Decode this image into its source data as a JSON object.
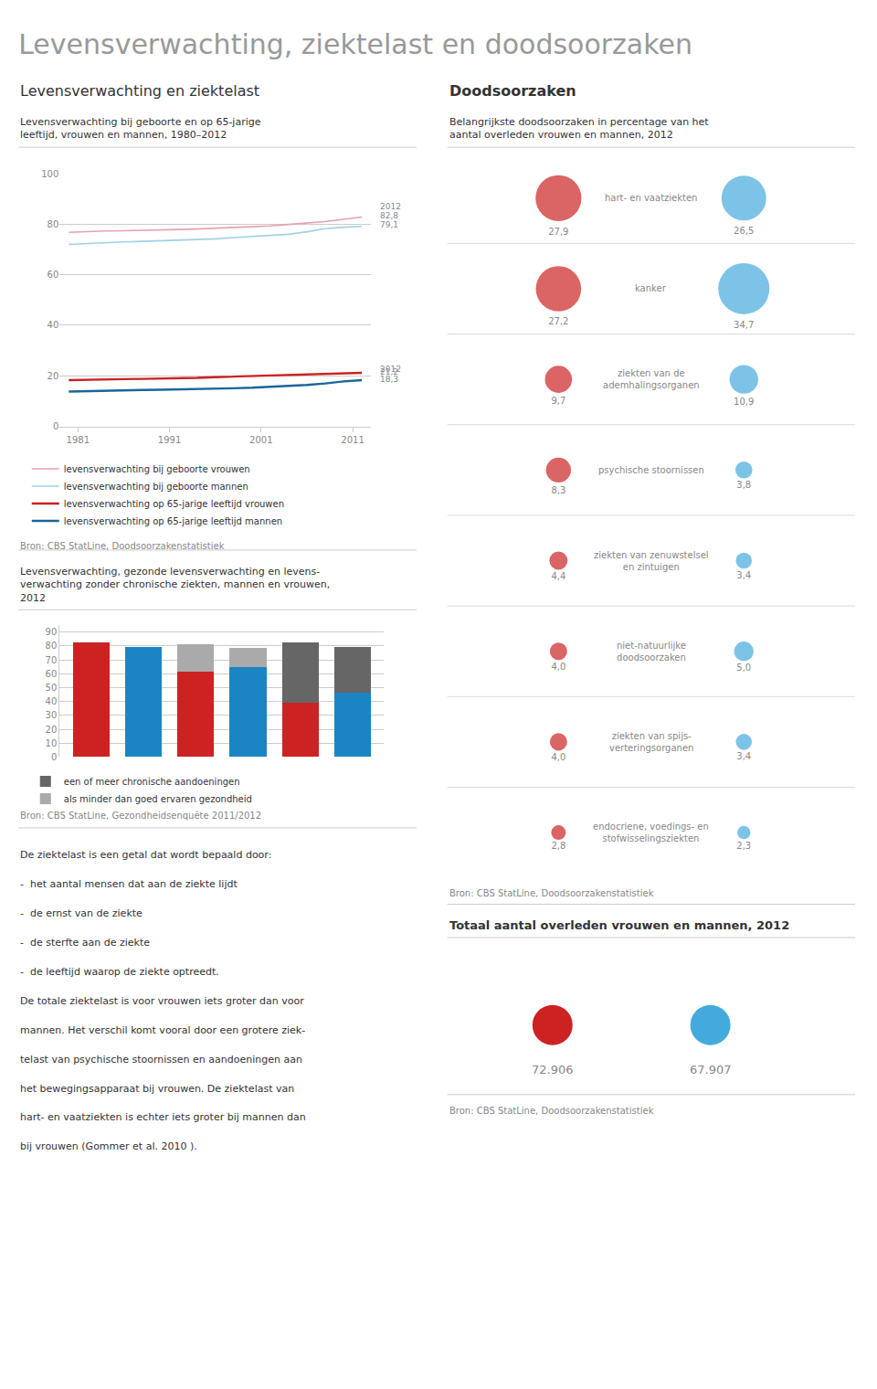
{
  "title": "Levensverwachting, ziektelast en doodsoorzaken",
  "annotations": [
    {
      "text": "Levensverwachting en ziektelast"
    },
    {
      "text": "Doodsoorzaken"
    },
    {
      "text": "De ziektelast is een getal dat wordt bepaald door:"
    },
    {
      "text": "-  het aantal mensen dat aan de ziekte lijdt"
    },
    {
      "text": "-  de ernst van de ziekte"
    },
    {
      "text": "-  de sterfte aan de ziekte"
    },
    {
      "text": "-  de leeftijd waarop de ziekte optreedt."
    },
    {
      "text": "De totale ziektelast is voor vrouwen iets groter dan voor"
    },
    {
      "text": "mannen. Het verschil komt vooral door een grotere ziek-"
    },
    {
      "text": "telast van psychische stoornissen en aandoeningen aan"
    },
    {
      "text": "het bewegingsapparaat bij vrouwen. De ziektelast van"
    },
    {
      "text": "hart- en vaatziekten is echter iets groter bij mannen dan"
    },
    {
      "text": "bij vrouwen (Gommer et al. 2010 )."
    }
  ],
  "chart_data": [
    {
      "type": "line",
      "title": "Levensverwachting bij geboorte en op 65-jarige\nleeftijd, vrouwen en mannen, 1980–2012",
      "x": [
        1980,
        1982,
        1984,
        1986,
        1988,
        1990,
        1992,
        1994,
        1996,
        1998,
        2000,
        2002,
        2004,
        2006,
        2008,
        2010,
        2012
      ],
      "series": [
        {
          "name": "levensverwachting bij geboorte vrouwen",
          "color": "#e8a0b0",
          "values": [
            76.8,
            77.1,
            77.3,
            77.4,
            77.5,
            77.6,
            77.9,
            78.1,
            78.3,
            78.7,
            79.0,
            79.3,
            79.9,
            80.4,
            81.0,
            81.9,
            82.8
          ]
        },
        {
          "name": "levensverwachting bij geboorte mannen",
          "color": "#a0d0e8",
          "values": [
            72.0,
            72.4,
            72.8,
            73.0,
            73.2,
            73.4,
            73.6,
            73.8,
            74.2,
            74.7,
            75.1,
            75.5,
            76.0,
            77.0,
            78.2,
            78.8,
            79.1
          ]
        },
        {
          "name": "levensverwachting op 65-jarige leeftijd vrouwen",
          "color": "#cc2222",
          "values": [
            18.3,
            18.5,
            18.6,
            18.7,
            18.8,
            18.9,
            19.1,
            19.2,
            19.5,
            19.7,
            19.8,
            20.0,
            20.3,
            20.5,
            20.7,
            21.0,
            21.2
          ]
        },
        {
          "name": "levensverwachting op 65-jarige leeftijd mannen",
          "color": "#1a6699",
          "values": [
            13.8,
            14.0,
            14.2,
            14.3,
            14.4,
            14.5,
            14.6,
            14.7,
            14.8,
            15.1,
            15.3,
            15.6,
            15.9,
            16.4,
            17.0,
            17.8,
            18.3
          ]
        }
      ],
      "xlim": [
        1979,
        2013
      ],
      "xticks": [
        1981,
        1991,
        2001,
        2011
      ],
      "ylim": [
        0,
        100
      ],
      "yticks": [
        0,
        20,
        40,
        60,
        80,
        100
      ],
      "grid": true,
      "legend": "bottom",
      "annotations": [
        {
          "text": "2012",
          "x": 2012,
          "y": 87
        },
        {
          "text": "82,8",
          "x": 2012,
          "y": 83.5
        },
        {
          "text": "79,1",
          "x": 2012,
          "y": 79.6
        },
        {
          "text": "2012",
          "x": 2012,
          "y": 22.8
        },
        {
          "text": "21,2",
          "x": 2012,
          "y": 21.7
        },
        {
          "text": "18,3",
          "x": 2012,
          "y": 18.8
        },
        {
          "text": "Bron: CBS StatLine, Doodsoorzakenstatistiek"
        }
      ]
    },
    {
      "type": "bar",
      "title": "Levensverwachting, gezonde levensverwachting en levens-\nverwachting zonder chronische ziekten, mannen en vrouwen,\n2012",
      "categories": [
        null,
        null,
        null,
        null,
        null,
        null
      ],
      "series": [
        {
          "colors": [
            "#cc2222",
            "#1a85c2",
            "#cc2222",
            "#1a85c2",
            "#cc2222",
            "#1a85c2"
          ],
          "values": [
            82.8,
            79.1,
            61.5,
            64.5,
            39.0,
            46.0
          ]
        },
        {
          "name": "als minder dan goed ervaren gezondheid",
          "color": "#aaaaaa",
          "values": [
            null,
            null,
            19.8,
            13.8,
            null,
            null
          ]
        },
        {
          "name": "een of meer chronische aandoeningen",
          "color": "#666666",
          "values": [
            null,
            null,
            null,
            null,
            43.8,
            33.1
          ]
        }
      ],
      "stacked": true,
      "ylim": [
        0,
        95
      ],
      "yticks": [
        0,
        10,
        20,
        30,
        40,
        50,
        60,
        70,
        80,
        90
      ],
      "grid": true,
      "tick_labels": "y",
      "legend": "bottom",
      "annotations": [
        {
          "text": "Bron: CBS StatLine, Gezondheidsenquête 2011/2012"
        }
      ]
    },
    {
      "type": "bubble",
      "title": "Belangrijkste doodsoorzaken in percentage van het\naantal overleden vrouwen en mannen, 2012",
      "categories": [
        "hart- en vaatziekten",
        "kanker",
        "ziekten van de\nademhalingsorganen",
        "psychische stoornissen",
        "ziekten van zenuwstelsel\nen zintuigen",
        "niet-natuurlijke\ndoodsoorzaken",
        "ziekten van spijs-\nverteringsorganen",
        "endocriene, voedings- en\nstofwisselingsziekten"
      ],
      "series": [
        {
          "color": "#cc2222",
          "values": [
            27.9,
            27.2,
            9.7,
            8.3,
            4.4,
            4.0,
            4.0,
            2.8
          ],
          "value_labels": [
            "27,9",
            "27,2",
            "9,7",
            "8,3",
            "4,4",
            "4,0",
            "4,0",
            "2,8"
          ]
        },
        {
          "color": "#44aadd",
          "values": [
            26.5,
            34.7,
            10.9,
            3.8,
            3.4,
            5.0,
            3.4,
            2.3
          ],
          "value_labels": [
            "26,5",
            "34,7",
            "10,9",
            "3,8",
            "3,4",
            "5,0",
            "3,4",
            "2,3"
          ]
        }
      ],
      "data_labels": true,
      "annotations": [
        {
          "text": "Bron: CBS StatLine, Doodsoorzakenstatistiek"
        }
      ]
    },
    {
      "type": "text",
      "title": "Totaal aantal overleden vrouwen en mannen, 2012",
      "annotations": [
        {
          "text": "72.906",
          "color": "#cc2222"
        },
        {
          "text": "67.907",
          "color": "#44aadd"
        },
        {
          "text": "Bron: CBS StatLine, Doodsoorzakenstatistiek"
        }
      ]
    }
  ]
}
